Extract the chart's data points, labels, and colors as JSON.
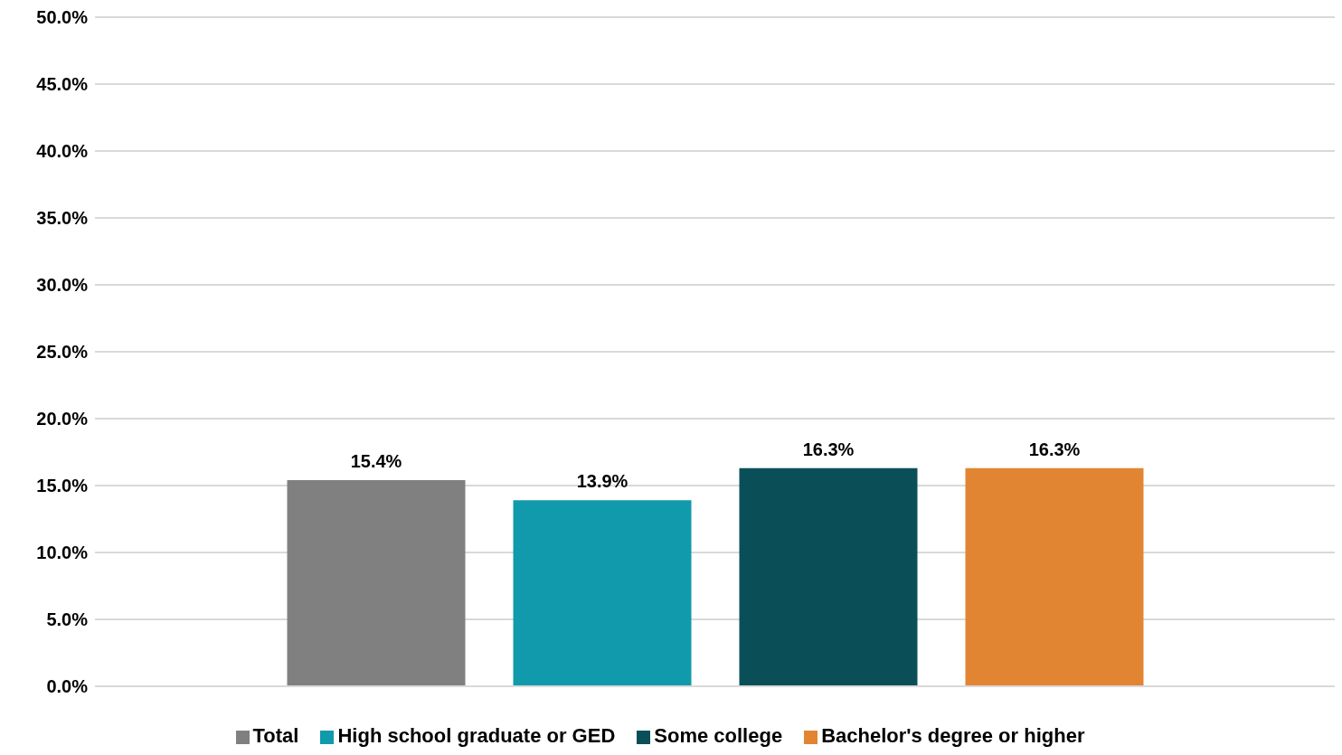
{
  "chart_data": {
    "type": "bar",
    "categories": [
      null
    ],
    "series": [
      {
        "name": "Total",
        "color": "#808080",
        "values": [
          15.4
        ],
        "value_labels": [
          "15.4%"
        ]
      },
      {
        "name": "High school graduate or GED",
        "color": "#119aab",
        "values": [
          13.9
        ],
        "value_labels": [
          "13.9%"
        ]
      },
      {
        "name": "Some college",
        "color": "#0a4f58",
        "values": [
          16.3
        ],
        "value_labels": [
          "16.3%"
        ]
      },
      {
        "name": "Bachelor's degree or higher",
        "color": "#e28533",
        "values": [
          16.3
        ],
        "value_labels": [
          "16.3%"
        ]
      }
    ],
    "ylim": [
      0,
      50
    ],
    "yticks": [
      {
        "value": 0,
        "label": "0.0%"
      },
      {
        "value": 5,
        "label": "5.0%"
      },
      {
        "value": 10,
        "label": "10.0%"
      },
      {
        "value": 15,
        "label": "15.0%"
      },
      {
        "value": 20,
        "label": "20.0%"
      },
      {
        "value": 25,
        "label": "25.0%"
      },
      {
        "value": 30,
        "label": "30.0%"
      },
      {
        "value": 35,
        "label": "35.0%"
      },
      {
        "value": 40,
        "label": "40.0%"
      },
      {
        "value": 45,
        "label": "45.0%"
      },
      {
        "value": 50,
        "label": "50.0%"
      }
    ],
    "grid": "y",
    "legend": "bottom"
  }
}
